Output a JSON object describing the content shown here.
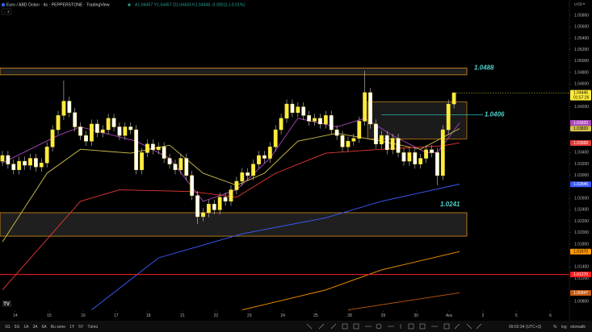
{
  "header": {
    "symbol": "Euro / ABD Doları · 4s · PEPPERSTONE · TradingView",
    "ohlc": "A1.04457 Y1.04457 D1.04433 K1.04446 -0.00011 (-0.01%)",
    "indicators": "3",
    "currency": "USD"
  },
  "chart_data": {
    "type": "candlestick",
    "color": "#ffeb3b",
    "wick_color": "#c8c8c8",
    "xlim": [
      -0.43,
      101.7
    ],
    "ylim": [
      1.00645,
      1.06068
    ],
    "grid": false,
    "open": [
      1.0325,
      1.0335,
      1.032,
      1.031,
      1.0325,
      1.0318,
      1.033,
      1.0315,
      1.0322,
      1.035,
      1.038,
      1.0405,
      1.043,
      1.041,
      1.0385,
      1.037,
      1.036,
      1.039,
      1.0375,
      1.038,
      1.04,
      1.0385,
      1.037,
      1.0385,
      1.038,
      1.031,
      1.034,
      1.0355,
      1.0345,
      1.035,
      1.033,
      1.032,
      1.031,
      1.033,
      1.03,
      1.0265,
      1.0228,
      1.0235,
      1.025,
      1.024,
      1.0262,
      1.0255,
      1.0275,
      1.029,
      1.0305,
      1.03,
      1.032,
      1.0335,
      1.033,
      1.035,
      1.038,
      1.04,
      1.0425,
      1.041,
      1.042,
      1.0405,
      1.0395,
      1.04,
      1.039,
      1.0405,
      1.038,
      1.037,
      1.035,
      1.036,
      1.0365,
      1.0395,
      1.0445,
      1.039,
      1.0355,
      1.037,
      1.0345,
      1.0365,
      1.034,
      1.0325,
      1.034,
      1.032,
      1.033,
      1.0345,
      1.034,
      1.03,
      1.038,
      1.0425
    ],
    "high": [
      1.0343,
      1.0343,
      1.0328,
      1.0333,
      1.0333,
      1.0338,
      1.0338,
      1.033,
      1.0358,
      1.0388,
      1.0413,
      1.0466,
      1.0438,
      1.0418,
      1.0393,
      1.0378,
      1.0398,
      1.0398,
      1.0388,
      1.0408,
      1.0408,
      1.0393,
      1.0393,
      1.0393,
      1.0388,
      1.0348,
      1.0363,
      1.0363,
      1.0358,
      1.0358,
      1.0338,
      1.0328,
      1.0338,
      1.0338,
      1.0308,
      1.0273,
      1.0243,
      1.0258,
      1.0258,
      1.027,
      1.027,
      1.0283,
      1.0298,
      1.0313,
      1.0313,
      1.0328,
      1.0343,
      1.0343,
      1.0358,
      1.0388,
      1.0408,
      1.0433,
      1.0433,
      1.0428,
      1.0428,
      1.0413,
      1.0408,
      1.0408,
      1.0413,
      1.0413,
      1.0388,
      1.0378,
      1.0368,
      1.0373,
      1.0403,
      1.0483,
      1.0453,
      1.0398,
      1.0378,
      1.0378,
      1.0373,
      1.0373,
      1.0348,
      1.0348,
      1.0348,
      1.0338,
      1.0353,
      1.0353,
      1.0348,
      1.0388,
      1.0433,
      1.04457
    ],
    "low": [
      1.0317,
      1.0312,
      1.0302,
      1.0302,
      1.031,
      1.031,
      1.0307,
      1.0307,
      1.0314,
      1.0342,
      1.0372,
      1.0397,
      1.0402,
      1.0377,
      1.0362,
      1.0352,
      1.0352,
      1.0367,
      1.0367,
      1.0372,
      1.0377,
      1.0362,
      1.0362,
      1.0372,
      1.0302,
      1.0302,
      1.0332,
      1.0337,
      1.0337,
      1.0322,
      1.0312,
      1.0302,
      1.0302,
      1.0292,
      1.0257,
      1.0215,
      1.022,
      1.0227,
      1.0232,
      1.0232,
      1.0247,
      1.0247,
      1.0267,
      1.0282,
      1.0292,
      1.0292,
      1.0312,
      1.0322,
      1.0322,
      1.0342,
      1.0372,
      1.0392,
      1.0402,
      1.0402,
      1.0397,
      1.0387,
      1.0387,
      1.0382,
      1.0382,
      1.0372,
      1.0362,
      1.0342,
      1.0342,
      1.0352,
      1.0357,
      1.0387,
      1.0382,
      1.0347,
      1.0347,
      1.0337,
      1.0337,
      1.0332,
      1.0317,
      1.0317,
      1.0312,
      1.0312,
      1.0322,
      1.0332,
      1.0283,
      1.0292,
      1.0372,
      1.0417
    ],
    "close": [
      1.0335,
      1.032,
      1.031,
      1.0325,
      1.0318,
      1.033,
      1.0315,
      1.0322,
      1.035,
      1.038,
      1.0405,
      1.043,
      1.041,
      1.0385,
      1.037,
      1.036,
      1.039,
      1.0375,
      1.038,
      1.04,
      1.0385,
      1.037,
      1.0385,
      1.038,
      1.031,
      1.034,
      1.0355,
      1.0345,
      1.035,
      1.033,
      1.032,
      1.031,
      1.033,
      1.03,
      1.0265,
      1.0228,
      1.0235,
      1.025,
      1.024,
      1.0262,
      1.0255,
      1.0275,
      1.029,
      1.0305,
      1.03,
      1.032,
      1.0335,
      1.033,
      1.035,
      1.038,
      1.04,
      1.0425,
      1.041,
      1.042,
      1.0405,
      1.0395,
      1.04,
      1.039,
      1.0405,
      1.038,
      1.037,
      1.035,
      1.036,
      1.0365,
      1.0395,
      1.0445,
      1.039,
      1.0355,
      1.037,
      1.0345,
      1.0365,
      1.034,
      1.0325,
      1.034,
      1.032,
      1.033,
      1.0345,
      1.034,
      1.03,
      1.038,
      1.0425,
      1.04446
    ],
    "overlays": [
      {
        "color": "#ab47bc",
        "x": [
          0,
          10,
          14,
          24,
          30,
          36,
          42,
          48,
          53,
          60,
          65,
          70,
          76,
          78,
          82
        ],
        "values": [
          1.0322,
          1.037,
          1.0385,
          1.036,
          1.033,
          1.0255,
          1.0275,
          1.033,
          1.04,
          1.0385,
          1.04,
          1.037,
          1.034,
          1.034,
          1.0392
        ]
      },
      {
        "color": "#d4c04a",
        "x": [
          0,
          8,
          14,
          23,
          30,
          36,
          42,
          47,
          53,
          60,
          68,
          75,
          82
        ],
        "values": [
          1.0184,
          1.0304,
          1.0346,
          1.0339,
          1.0353,
          1.0304,
          1.0283,
          1.0304,
          1.036,
          1.0374,
          1.036,
          1.0346,
          1.0382
        ]
      },
      {
        "color": "#e53935",
        "x": [
          0,
          14,
          21,
          34,
          42,
          49,
          58,
          68,
          79,
          82
        ],
        "values": [
          1.01,
          1.0255,
          1.0275,
          1.0272,
          1.0262,
          1.0304,
          1.0339,
          1.0346,
          1.0352,
          1.0357
        ]
      },
      {
        "color": "#3d5afe",
        "x": [
          16,
          28,
          43,
          58,
          68,
          82
        ],
        "values": [
          1.0065,
          1.0156,
          1.0198,
          1.0226,
          1.0255,
          1.0285
        ]
      },
      {
        "color": "#ff9800",
        "x": [
          43,
          58,
          68,
          82
        ],
        "values": [
          1.0065,
          1.01,
          1.0135,
          1.0167
        ]
      },
      {
        "color": "#c55a11",
        "x": [
          62,
          82
        ],
        "values": [
          1.0065,
          1.0095
        ]
      }
    ],
    "zones": [
      {
        "range": [
          1.0476,
          1.0488
        ],
        "color": "#f7a21b"
      },
      {
        "range": [
          1.0364,
          1.0429
        ],
        "color": "#d98d1a"
      },
      {
        "range": [
          1.0194,
          1.0235
        ],
        "color": "#f7a21b"
      }
    ],
    "levels": [
      {
        "value": 1.0406,
        "color": "#26a69a"
      },
      {
        "value": 1.0127,
        "color": "#ff1e1e"
      }
    ],
    "annotations": [
      {
        "value": 1.0488,
        "color": "#4dd0c8"
      },
      {
        "value": 1.0406,
        "color": "#4dd0c8"
      },
      {
        "value": 1.0241,
        "color": "#4dd0c8"
      }
    ],
    "xticks": [
      {
        "value": 2.3,
        "label": "14"
      },
      {
        "value": 8.4,
        "label": "15"
      },
      {
        "value": 14.5,
        "label": "16"
      },
      {
        "value": 20.4,
        "label": "17"
      },
      {
        "value": 26.2,
        "label": "18"
      },
      {
        "value": 32.3,
        "label": "21"
      },
      {
        "value": 38.3,
        "label": "22"
      },
      {
        "value": 44.3,
        "label": "23"
      },
      {
        "value": 50.3,
        "label": "24"
      },
      {
        "value": 56.2,
        "label": "25"
      },
      {
        "value": 62.3,
        "label": "28"
      },
      {
        "value": 68.3,
        "label": "29"
      },
      {
        "value": 74.2,
        "label": "30"
      },
      {
        "value": 80.1,
        "label": "Ara"
      },
      {
        "value": 86.2,
        "label": "2"
      },
      {
        "value": 92.2,
        "label": "5"
      },
      {
        "value": 98.3,
        "label": "6"
      }
    ],
    "yticks": [
      {
        "value": 1.058,
        "label": "1.05800"
      },
      {
        "value": 1.056,
        "label": "1.05600"
      },
      {
        "value": 1.054,
        "label": "1.05400"
      },
      {
        "value": 1.052,
        "label": "1.05200"
      },
      {
        "value": 1.05,
        "label": "1.05000"
      },
      {
        "value": 1.048,
        "label": "1.04800"
      },
      {
        "value": 1.046,
        "label": "1.04600"
      },
      {
        "value": 1.042,
        "label": "1.04200"
      },
      {
        "value": 1.038,
        "label": "1.03800"
      },
      {
        "value": 1.034,
        "label": "1.03400"
      },
      {
        "value": 1.032,
        "label": "1.03200"
      },
      {
        "value": 1.03,
        "label": "1.03000"
      },
      {
        "value": 1.026,
        "label": "1.02600"
      },
      {
        "value": 1.024,
        "label": "1.02400"
      },
      {
        "value": 1.022,
        "label": "1.02200"
      },
      {
        "value": 1.02,
        "label": "1.02000"
      },
      {
        "value": 1.018,
        "label": "1.01800"
      },
      {
        "value": 1.014,
        "label": "1.01400"
      },
      {
        "value": 1.012,
        "label": "1.01200"
      },
      {
        "value": 1.008,
        "label": "1.00800"
      }
    ],
    "price_tags": [
      {
        "value": 1.04446,
        "label": "1.04446",
        "sublabel": "01:57:26",
        "color": "#ffeb3b",
        "text_color": "#000000"
      },
      {
        "value": 1.0392,
        "label": "1.03920",
        "color": "#ab47bc",
        "text_color": "#ffffff"
      },
      {
        "value": 1.0382,
        "label": "1.03820",
        "color": "#d4c04a",
        "text_color": "#000000"
      },
      {
        "value": 1.03568,
        "label": "1.03568",
        "color": "#e53935",
        "text_color": "#ffffff"
      },
      {
        "value": 1.02846,
        "label": "1.02846",
        "color": "#3d5afe",
        "text_color": "#ffffff"
      },
      {
        "value": 1.0167,
        "label": "1.01670",
        "color": "#ff9800",
        "text_color": "#000000"
      },
      {
        "value": 1.0127,
        "label": "1.01270",
        "color": "#ff1e1e",
        "text_color": "#ffffff"
      },
      {
        "value": 1.00947,
        "label": "1.00947",
        "color": "#c55a11",
        "text_color": "#ffffff"
      }
    ]
  },
  "bottom_bar": {
    "ranges": [
      "1G",
      "5G",
      "1A",
      "3A",
      "6A",
      "Bu sene",
      "1Y",
      "5Y",
      "Tümü"
    ],
    "clock": "09:02:34 (UTC+3)",
    "percent": "%",
    "log": "log",
    "auto": "otomatik"
  }
}
